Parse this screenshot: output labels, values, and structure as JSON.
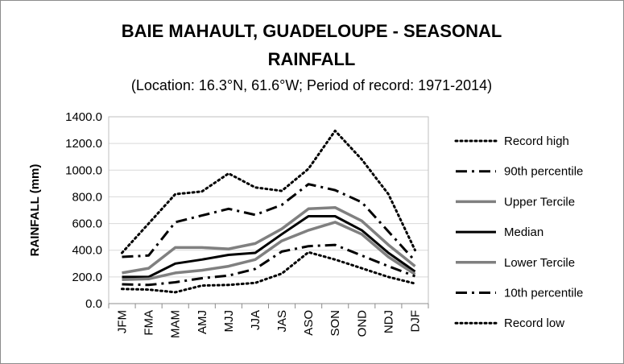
{
  "chart_data": {
    "type": "line",
    "title_line1": "BAIE MAHAULT, GUADELOUPE - SEASONAL",
    "title_line2": "RAINFALL",
    "subtitle": "(Location: 16.3°N, 61.6°W; Period of record: 1971-2014)",
    "xlabel": "",
    "ylabel": "RAINFALL (mm)",
    "ylim": [
      0,
      1400
    ],
    "yticks": [
      "0.0",
      "200.0",
      "400.0",
      "600.0",
      "800.0",
      "1000.0",
      "1200.0",
      "1400.0"
    ],
    "grid": true,
    "legend_position": "right",
    "categories": [
      "JFM",
      "FMA",
      "MAM",
      "AMJ",
      "MJJ",
      "JJA",
      "JAS",
      "ASO",
      "SON",
      "OND",
      "NDJ",
      "DJF"
    ],
    "series": [
      {
        "name": "Record high",
        "color": "#000000",
        "style": "dotted",
        "values": [
          380,
          600,
          820,
          840,
          975,
          870,
          845,
          1010,
          1295,
          1080,
          820,
          400
        ]
      },
      {
        "name": "90th percentile",
        "color": "#000000",
        "style": "dashdot",
        "values": [
          350,
          360,
          610,
          660,
          710,
          665,
          740,
          895,
          850,
          760,
          540,
          320
        ]
      },
      {
        "name": "Upper Tercile",
        "color": "#808080",
        "style": "solid",
        "values": [
          230,
          265,
          420,
          420,
          410,
          450,
          560,
          710,
          720,
          620,
          440,
          280
        ]
      },
      {
        "name": "Median",
        "color": "#000000",
        "style": "solid",
        "values": [
          200,
          200,
          300,
          330,
          365,
          380,
          520,
          655,
          655,
          550,
          380,
          240
        ]
      },
      {
        "name": "Lower Tercile",
        "color": "#808080",
        "style": "solid",
        "values": [
          180,
          185,
          230,
          250,
          280,
          330,
          470,
          550,
          610,
          520,
          350,
          220
        ]
      },
      {
        "name": "10th percentile",
        "color": "#000000",
        "style": "dashdot",
        "values": [
          145,
          140,
          160,
          190,
          210,
          260,
          390,
          430,
          440,
          360,
          280,
          205
        ]
      },
      {
        "name": "Record low",
        "color": "#000000",
        "style": "dotted",
        "values": [
          110,
          105,
          85,
          135,
          140,
          155,
          225,
          385,
          330,
          265,
          200,
          150
        ]
      }
    ]
  }
}
